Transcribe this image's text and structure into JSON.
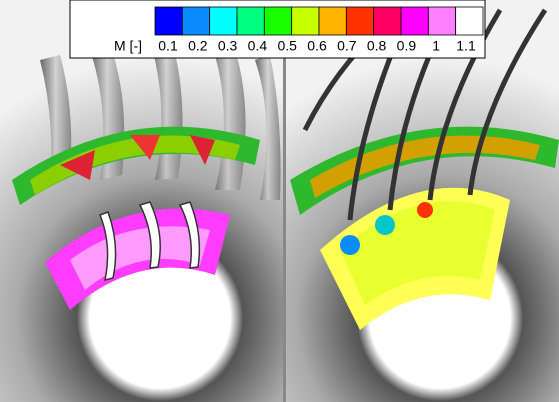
{
  "legend": {
    "title": "M [-]",
    "labels": [
      "0.1",
      "0.2",
      "0.3",
      "0.4",
      "0.5",
      "0.6",
      "0.7",
      "0.8",
      "0.9",
      "1",
      "1.1"
    ],
    "colors": [
      "#0000ff",
      "#0a8cff",
      "#00ffff",
      "#00ff80",
      "#1aff00",
      "#c8ff00",
      "#ffb400",
      "#ff3200",
      "#ff0064",
      "#ff00ff",
      "#ff80ff",
      "#ffffff"
    ]
  }
}
